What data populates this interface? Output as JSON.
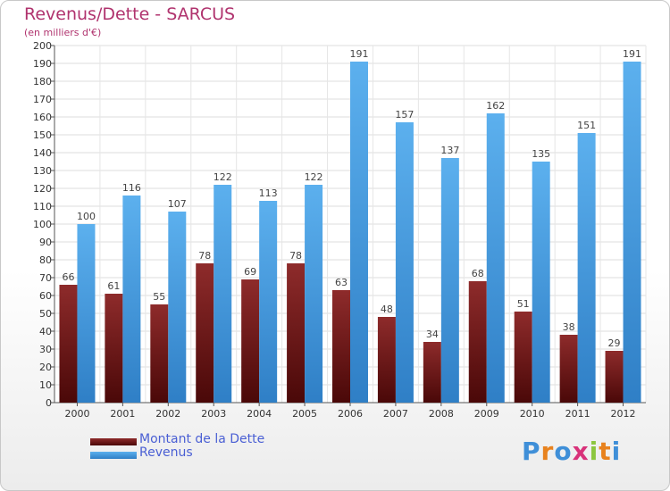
{
  "title": "Revenus/Dette - SARCUS",
  "subtitle": "(en milliers d'€)",
  "logo_text": "Proxiti",
  "colors": {
    "debt": "#7a1a1a",
    "revenue": "#4aa3e8",
    "title": "#b0336e",
    "legend_text": "#4a5fd4"
  },
  "chart_data": {
    "type": "bar",
    "categories": [
      "2000",
      "2001",
      "2002",
      "2003",
      "2004",
      "2005",
      "2006",
      "2007",
      "2008",
      "2009",
      "2010",
      "2011",
      "2012"
    ],
    "series": [
      {
        "name": "Montant de la Dette",
        "values": [
          66,
          61,
          55,
          78,
          69,
          78,
          63,
          48,
          34,
          68,
          51,
          38,
          29
        ]
      },
      {
        "name": "Revenus",
        "values": [
          100,
          116,
          107,
          122,
          113,
          122,
          191,
          157,
          137,
          162,
          135,
          151,
          191
        ]
      }
    ],
    "ylim": [
      0,
      200
    ],
    "yticks": [
      0,
      10,
      20,
      30,
      40,
      50,
      60,
      70,
      80,
      90,
      100,
      110,
      120,
      130,
      140,
      150,
      160,
      170,
      180,
      190,
      200
    ],
    "grid": true,
    "legend_position": "bottom-left",
    "data_labels": true
  }
}
